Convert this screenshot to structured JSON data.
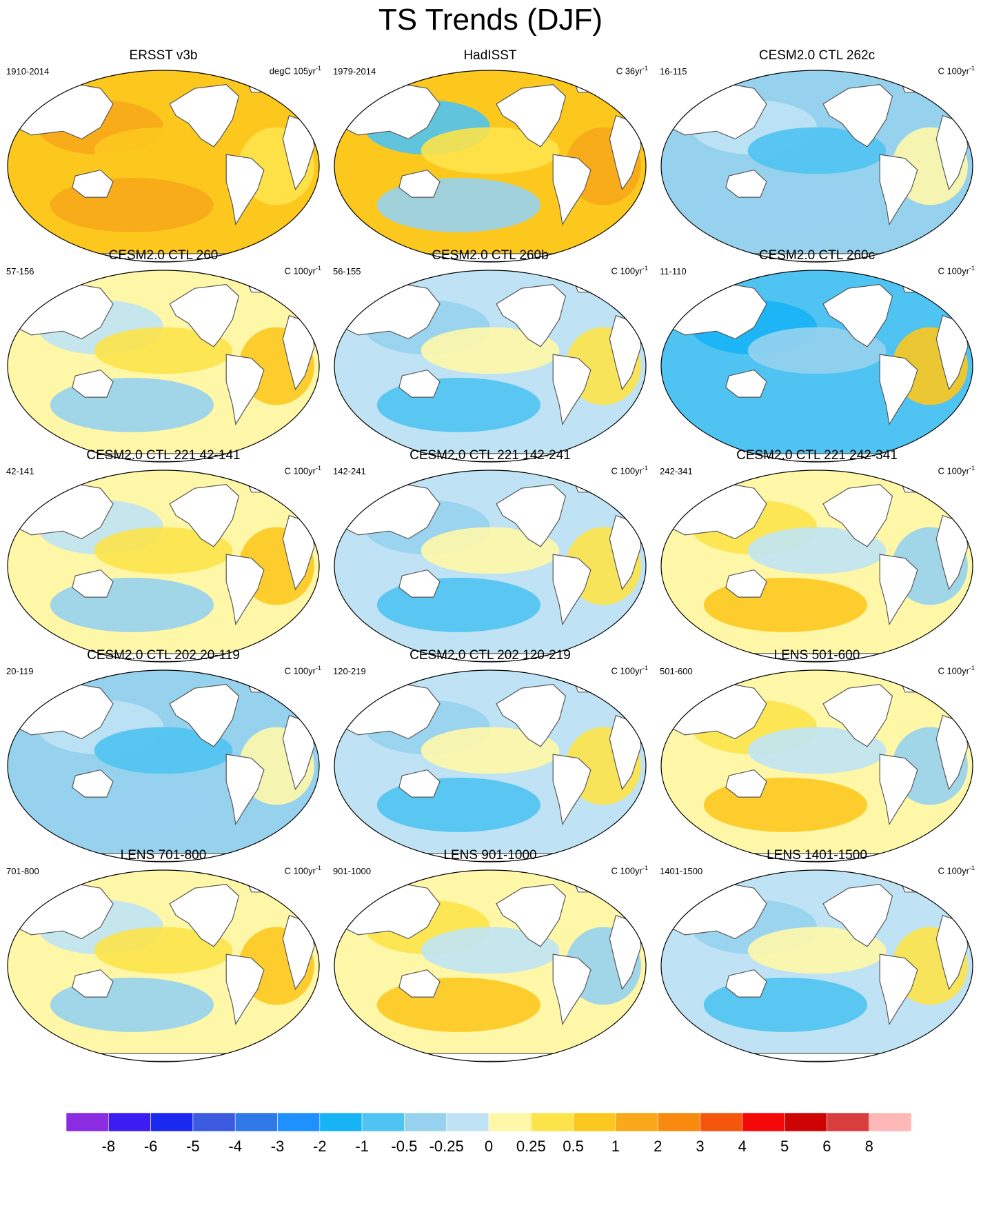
{
  "title": "TS Trends (DJF)",
  "panels": [
    {
      "title": "ERSST v3b",
      "period": "1910-2014",
      "units": "degC 105yr",
      "units_sup": "-1",
      "pattern": "warm"
    },
    {
      "title": "HadISST",
      "period": "1979-2014",
      "units": "C 36yr",
      "units_sup": "-1",
      "pattern": "mixed-warm"
    },
    {
      "title": "CESM2.0 CTL 262c",
      "period": "16-115",
      "units": "C 100yr",
      "units_sup": "-1",
      "pattern": "cool"
    },
    {
      "title": "CESM2.0 CTL 260",
      "period": "57-156",
      "units": "C 100yr",
      "units_sup": "-1",
      "pattern": "neutral-warm"
    },
    {
      "title": "CESM2.0 CTL 260b",
      "period": "56-155",
      "units": "C 100yr",
      "units_sup": "-1",
      "pattern": "neutral-cool"
    },
    {
      "title": "CESM2.0 CTL 260c",
      "period": "11-110",
      "units": "C 100yr",
      "units_sup": "-1",
      "pattern": "cold"
    },
    {
      "title": "CESM2.0 CTL 221 42-141",
      "period": "42-141",
      "units": "C 100yr",
      "units_sup": "-1",
      "pattern": "neutral-warm"
    },
    {
      "title": "CESM2.0 CTL 221 142-241",
      "period": "142-241",
      "units": "C 100yr",
      "units_sup": "-1",
      "pattern": "neutral-cool"
    },
    {
      "title": "CESM2.0 CTL 221 242-341",
      "period": "242-341",
      "units": "C 100yr",
      "units_sup": "-1",
      "pattern": "slight-warm"
    },
    {
      "title": "CESM2.0 CTL 202 20-119",
      "period": "20-119",
      "units": "C 100yr",
      "units_sup": "-1",
      "pattern": "cool"
    },
    {
      "title": "CESM2.0 CTL 202 120-219",
      "period": "120-219",
      "units": "C 100yr",
      "units_sup": "-1",
      "pattern": "neutral-cool"
    },
    {
      "title": "LENS 501-600",
      "period": "501-600",
      "units": "C 100yr",
      "units_sup": "-1",
      "pattern": "slight-warm"
    },
    {
      "title": "LENS 701-800",
      "period": "701-800",
      "units": "C 100yr",
      "units_sup": "-1",
      "pattern": "neutral-warm"
    },
    {
      "title": "LENS 901-1000",
      "period": "901-1000",
      "units": "C 100yr",
      "units_sup": "-1",
      "pattern": "slight-warm"
    },
    {
      "title": "LENS 1401-1500",
      "period": "1401-1500",
      "units": "C 100yr",
      "units_sup": "-1",
      "pattern": "neutral-cool"
    }
  ],
  "colorbar": {
    "labels": [
      "-8",
      "-6",
      "-5",
      "-4",
      "-3",
      "-2",
      "-1",
      "-0.5",
      "-0.25",
      "0",
      "0.25",
      "0.5",
      "1",
      "2",
      "3",
      "4",
      "5",
      "6",
      "8"
    ],
    "colors": [
      "#8b2be2",
      "#3c1cf0",
      "#1a28f0",
      "#3c5adf",
      "#2e78e8",
      "#1e90ff",
      "#17b4f5",
      "#4fc3f2",
      "#96d2ee",
      "#bfe3f4",
      "#fff7a8",
      "#fde34a",
      "#fcc81e",
      "#f8a818",
      "#f88a10",
      "#f4560e",
      "#f40808",
      "#ce0404",
      "#d83e3e",
      "#ffb8b8"
    ]
  },
  "colors": {
    "land": "#ffffff",
    "coast": "#555555",
    "border": "#000000"
  }
}
